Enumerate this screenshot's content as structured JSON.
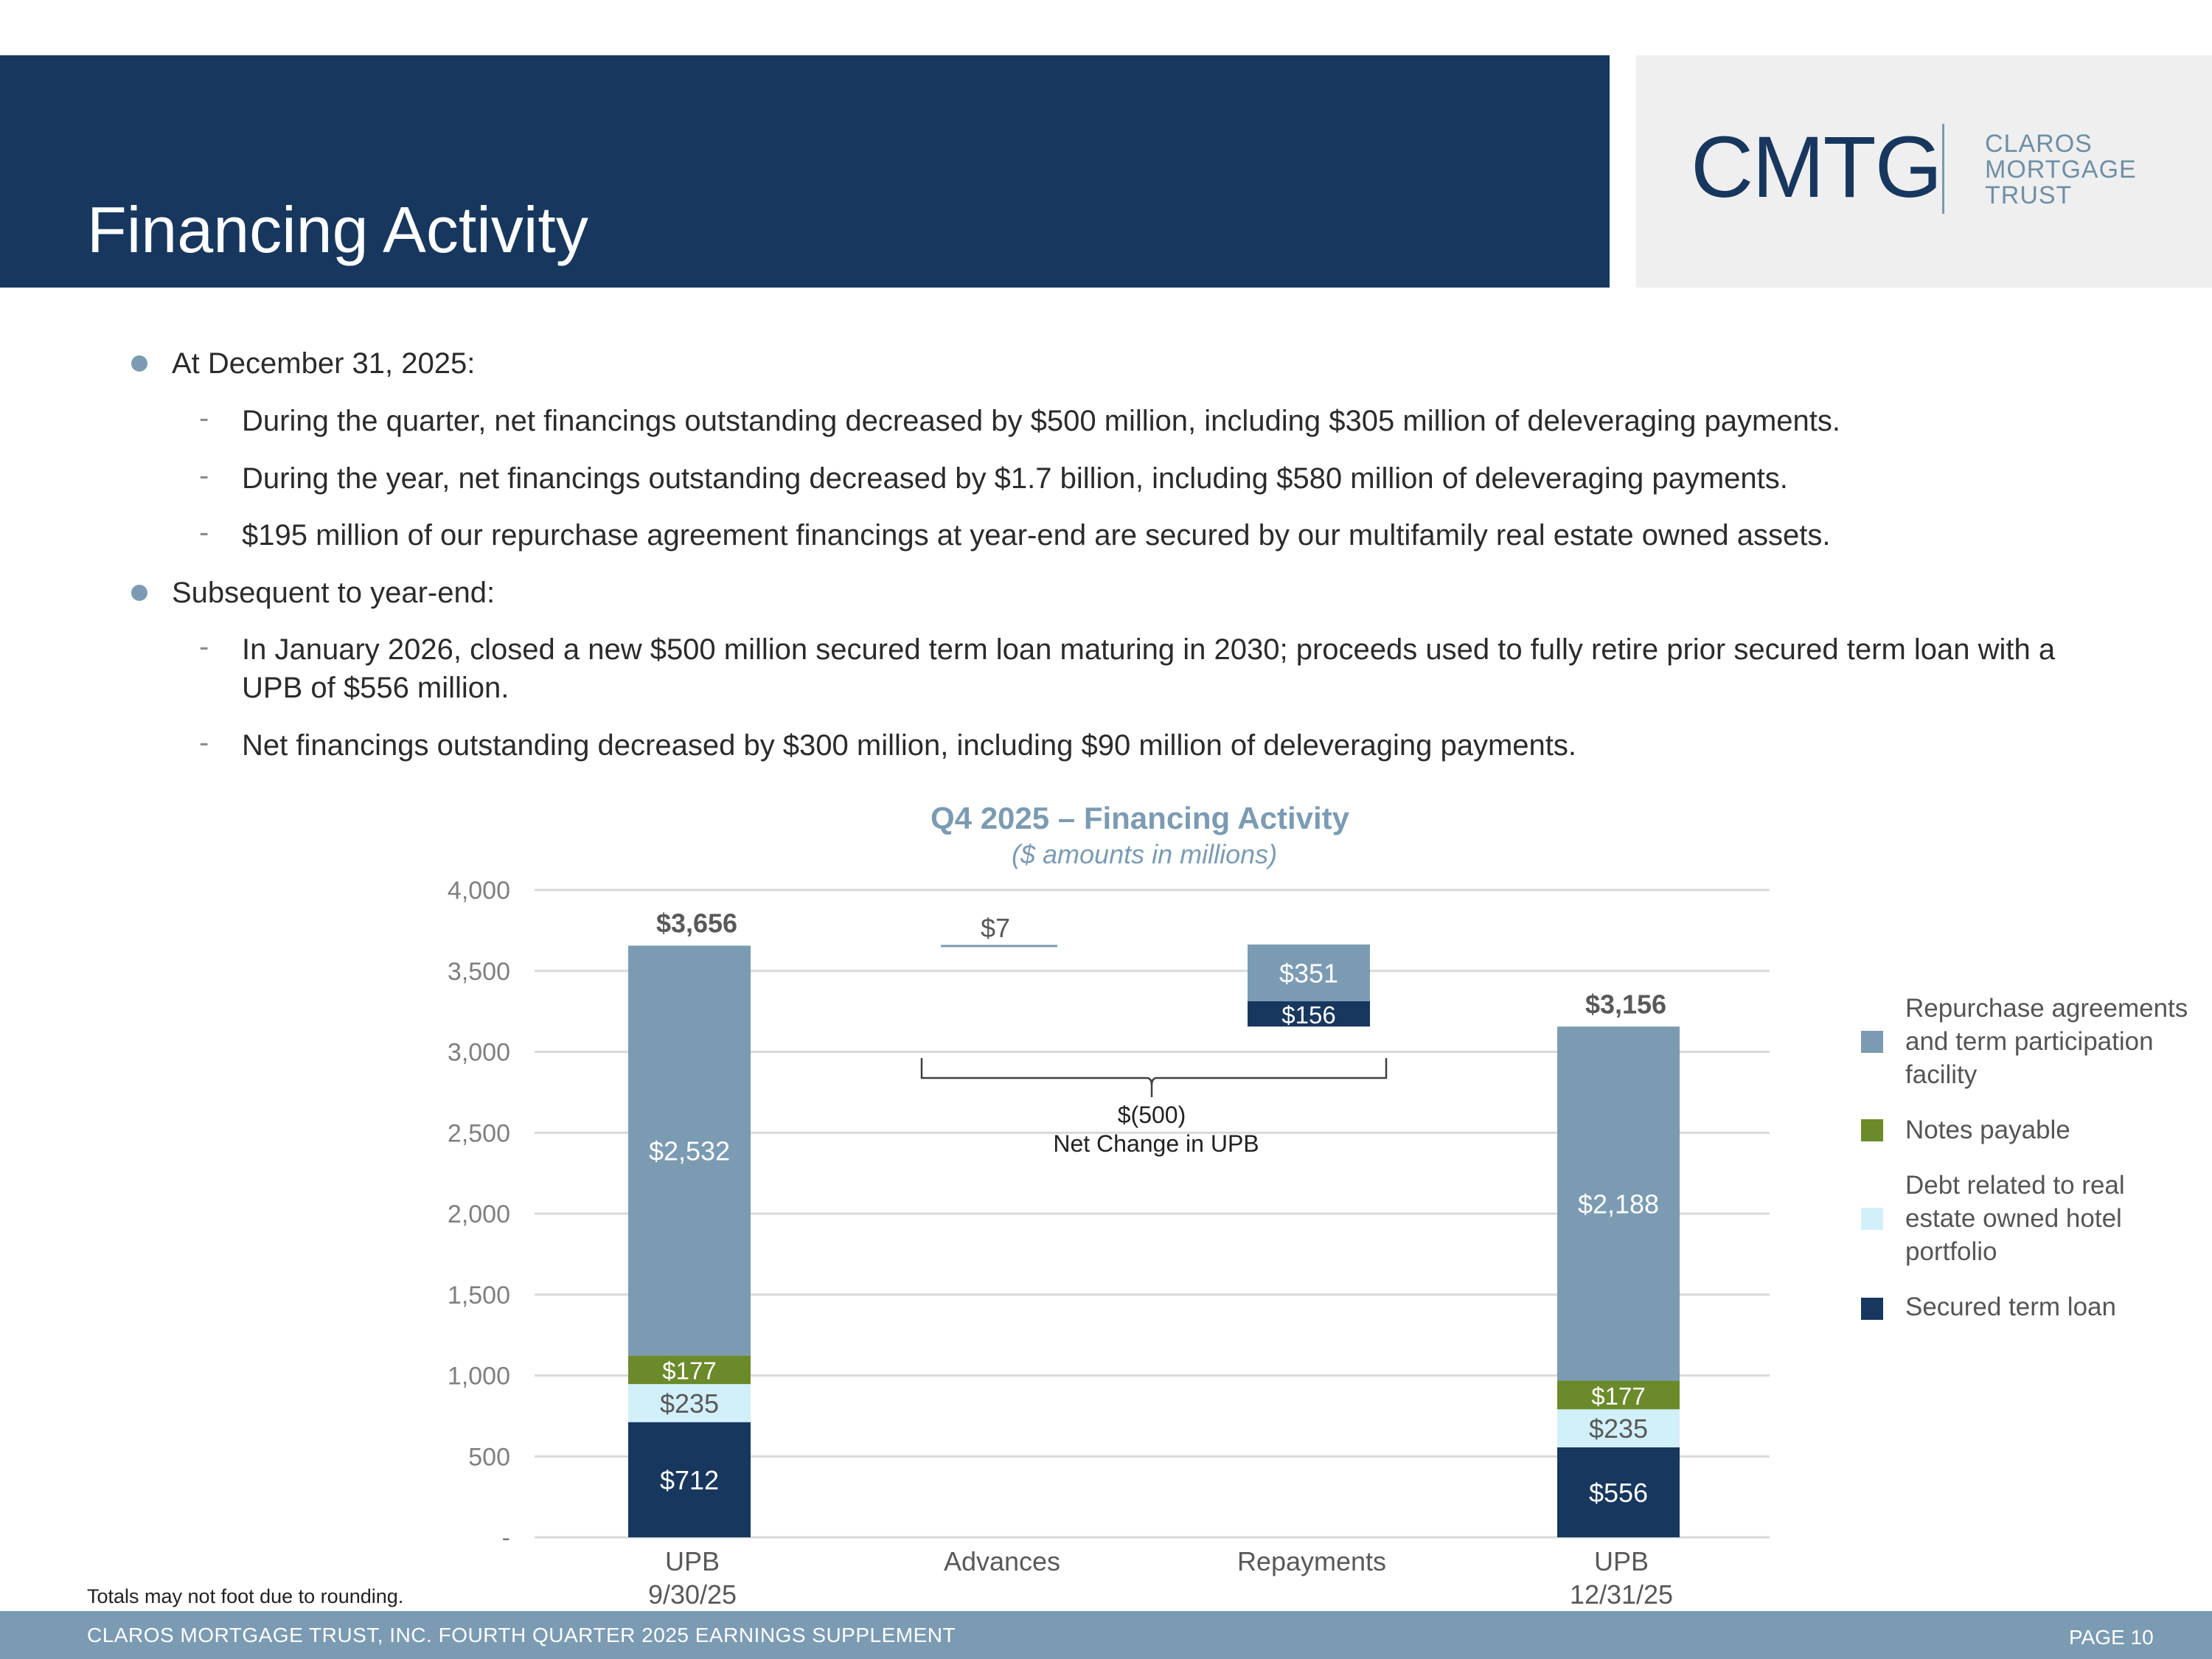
{
  "header": {
    "title": "Financing Activity"
  },
  "logo": {
    "mark": "CMTG",
    "lines": [
      "CLAROS",
      "MORTGAGE",
      "TRUST"
    ]
  },
  "bullets": [
    {
      "text": "At December 31, 2025:",
      "subs": [
        "During the quarter, net financings outstanding decreased by $500 million, including $305 million of deleveraging payments.",
        "During the year, net financings outstanding decreased by $1.7 billion, including $580 million of deleveraging payments.",
        "$195 million of our repurchase agreement financings at year-end are secured by our multifamily real estate owned assets."
      ]
    },
    {
      "text": "Subsequent to year-end:",
      "subs": [
        "In January 2026, closed a new $500 million secured term loan maturing in 2030; proceeds used to fully retire prior secured term loan with a UPB of $556 million.",
        "Net financings outstanding decreased by $300 million, including $90 million of deleveraging payments."
      ]
    }
  ],
  "chart_data": {
    "type": "bar",
    "title": "Q4 2025 – Financing Activity",
    "subtitle": "($ amounts in millions)",
    "ylim": [
      0,
      4000
    ],
    "yticks": [
      0,
      500,
      1000,
      1500,
      2000,
      2500,
      3000,
      3500,
      4000
    ],
    "ytick_labels": [
      "-",
      "500",
      "1,000",
      "1,500",
      "2,000",
      "2,500",
      "3,000",
      "3,500",
      "4,000"
    ],
    "categories": [
      {
        "line1": "UPB",
        "line2": "9/30/25"
      },
      {
        "line1": "Advances",
        "line2": ""
      },
      {
        "line1": "Repayments",
        "line2": ""
      },
      {
        "line1": "UPB",
        "line2": "12/31/25"
      }
    ],
    "colors": {
      "repo": "#7b9bb3",
      "notes": "#6b8a2a",
      "reo": "#d2f0fa",
      "stl": "#17375e"
    },
    "series": [
      {
        "name": "Secured term loan",
        "key": "stl",
        "values": [
          712,
          0,
          156,
          556
        ],
        "labels": [
          "$712",
          "",
          "$156",
          "$556"
        ]
      },
      {
        "name": "Debt related to real estate owned hotel portfolio",
        "key": "reo",
        "values": [
          235,
          0,
          0,
          235
        ],
        "labels": [
          "$235",
          "",
          "",
          "$235"
        ]
      },
      {
        "name": "Notes payable",
        "key": "notes",
        "values": [
          177,
          0,
          0,
          177
        ],
        "labels": [
          "$177",
          "",
          "",
          "$177"
        ]
      },
      {
        "name": "Repurchase agreements and term participation facility",
        "key": "repo",
        "values": [
          2532,
          7,
          351,
          2188
        ],
        "labels": [
          "$2,532",
          "$7",
          "$351",
          "$2,188"
        ]
      }
    ],
    "waterfall_base": [
      0,
      3656,
      3156,
      0
    ],
    "totals": [
      "$3,656",
      "",
      "",
      "$3,156"
    ],
    "annotation": {
      "value": "$(500)",
      "text": "Net Change in UPB"
    },
    "legend": [
      "Repurchase agreements and term participation facility",
      "Notes payable",
      "Debt related to real estate owned hotel portfolio",
      "Secured term loan"
    ]
  },
  "footnote": "Totals may not foot due to rounding.",
  "footer": {
    "left": "CLAROS MORTGAGE TRUST, INC. FOURTH QUARTER 2025 EARNINGS SUPPLEMENT",
    "page": "PAGE 10"
  }
}
